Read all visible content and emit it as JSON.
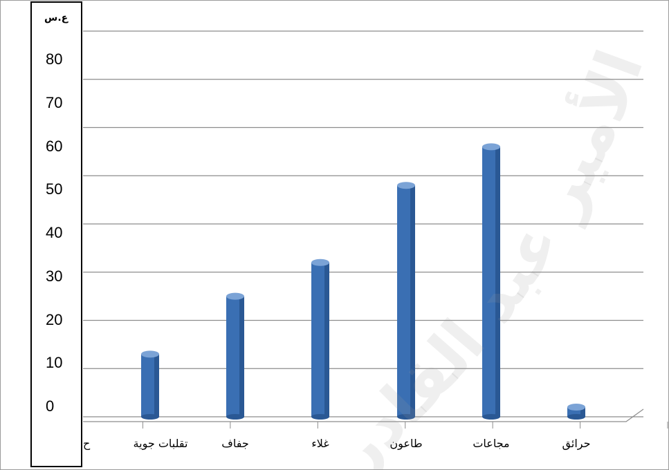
{
  "chart_data": {
    "type": "bar",
    "title": "",
    "xlabel": "",
    "ylabel": "ع.س",
    "ylim": [
      0,
      80
    ],
    "yticks": [
      0,
      10,
      20,
      30,
      40,
      50,
      60,
      70,
      80
    ],
    "categories": [
      "ح",
      "تقلبات جوية",
      "جفاف",
      "غلاء",
      "طاعون",
      "مجاعات",
      "حرائق"
    ],
    "values": [
      0,
      13,
      25,
      32,
      48,
      56,
      2
    ],
    "grid": true,
    "legend": "none",
    "colors": {
      "bar": "#3a6fb3",
      "bar_dark": "#2a5894",
      "bar_light": "#7ba3d6",
      "grid": "#8c8c8c"
    }
  },
  "watermark": {
    "text": "جامعة الأمير عبد القادر"
  }
}
